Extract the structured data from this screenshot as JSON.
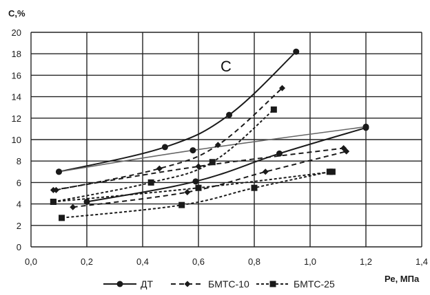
{
  "chart_data": {
    "type": "line",
    "title": "",
    "ylabel": "С,%",
    "xlabel": "Ре, МПа",
    "xlim": [
      0.0,
      1.4
    ],
    "ylim": [
      0,
      20
    ],
    "x_ticks": [
      "0,0",
      "0,2",
      "0,4",
      "0,6",
      "0,8",
      "1,0",
      "1,2",
      "1,4"
    ],
    "y_ticks": [
      "0",
      "2",
      "4",
      "6",
      "8",
      "10",
      "12",
      "14",
      "16",
      "18",
      "20"
    ],
    "grid": true,
    "legend_position": "bottom",
    "annotation": "С",
    "series": [
      {
        "name": "ДТ",
        "marker": "circle",
        "line_style": "solid",
        "color": "#1a1a1a",
        "curves": [
          {
            "points": [
              [
                0.1,
                7.0
              ],
              [
                0.48,
                9.3
              ],
              [
                0.71,
                12.3
              ],
              [
                0.95,
                18.2
              ]
            ]
          },
          {
            "points": [
              [
                0.1,
                7.0
              ],
              [
                0.58,
                9.0
              ],
              [
                1.2,
                11.2
              ]
            ],
            "line_color": "#666666"
          },
          {
            "points": [
              [
                0.2,
                4.2
              ],
              [
                0.59,
                6.1
              ],
              [
                0.89,
                8.7
              ],
              [
                1.2,
                11.1
              ]
            ]
          }
        ]
      },
      {
        "name": "БМТС-10",
        "marker": "diamond",
        "line_style": "dashed",
        "color": "#1a1a1a",
        "curves": [
          {
            "points": [
              [
                0.09,
                5.3
              ],
              [
                0.46,
                7.3
              ],
              [
                0.67,
                9.5
              ],
              [
                0.9,
                14.8
              ]
            ]
          },
          {
            "points": [
              [
                0.08,
                5.3
              ],
              [
                0.6,
                7.5
              ],
              [
                1.12,
                9.2
              ]
            ]
          },
          {
            "points": [
              [
                0.15,
                3.7
              ],
              [
                0.56,
                5.1
              ],
              [
                0.84,
                7.0
              ],
              [
                1.13,
                8.9
              ]
            ]
          }
        ]
      },
      {
        "name": "БМТС-25",
        "marker": "square",
        "line_style": "dotted",
        "color": "#1a1a1a",
        "curves": [
          {
            "points": [
              [
                0.08,
                4.2
              ],
              [
                0.43,
                6.0
              ],
              [
                0.65,
                7.9
              ],
              [
                0.87,
                12.8
              ]
            ]
          },
          {
            "points": [
              [
                0.08,
                4.2
              ],
              [
                0.6,
                5.5
              ],
              [
                1.08,
                7.0
              ]
            ]
          },
          {
            "points": [
              [
                0.11,
                2.7
              ],
              [
                0.54,
                3.9
              ],
              [
                0.8,
                5.5
              ],
              [
                1.07,
                7.0
              ]
            ]
          }
        ]
      }
    ]
  }
}
